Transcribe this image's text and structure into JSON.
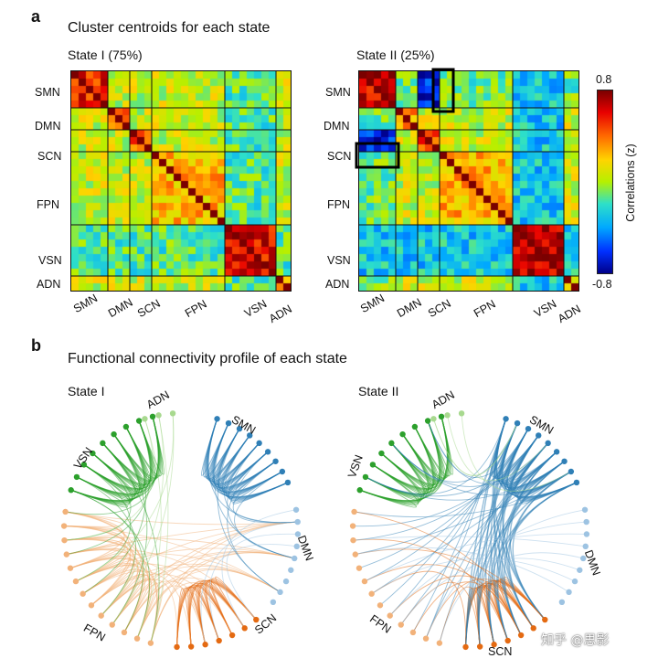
{
  "figure": {
    "panel_a": {
      "letter": "a",
      "title": "Cluster centroids for each state",
      "state1_title": "State I (75%)",
      "state2_title": "State II (25%)",
      "networks": [
        "SMN",
        "DMN",
        "SCN",
        "FPN",
        "VSN",
        "ADN"
      ],
      "colorbar": {
        "label": "Correlations (z)",
        "max_label": "0.8",
        "min_label": "-0.8",
        "max": 0.8,
        "min": -0.8
      }
    },
    "panel_b": {
      "letter": "b",
      "title": "Functional connectivity profile of each state",
      "state1_title": "State I",
      "state2_title": "State II",
      "network_labels": [
        "ADN",
        "SMN",
        "DMN",
        "SCN",
        "FPN",
        "VSN"
      ],
      "colors": {
        "SMN": "#2f7fb6",
        "DMN": "#9dc3e2",
        "SCN": "#e46a12",
        "FPN": "#f2b27a",
        "VSN": "#2ca02c",
        "ADN": "#a8d98f"
      }
    },
    "watermark": "知乎 @思影"
  }
}
